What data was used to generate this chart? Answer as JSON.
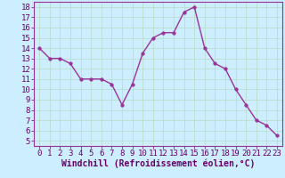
{
  "x": [
    0,
    1,
    2,
    3,
    4,
    5,
    6,
    7,
    8,
    9,
    10,
    11,
    12,
    13,
    14,
    15,
    16,
    17,
    18,
    19,
    20,
    21,
    22,
    23
  ],
  "y": [
    14,
    13,
    13,
    12.5,
    11,
    11,
    11,
    10.5,
    8.5,
    10.5,
    13.5,
    15,
    15.5,
    15.5,
    17.5,
    18,
    14,
    12.5,
    12,
    10,
    8.5,
    7,
    6.5,
    5.5
  ],
  "line_color": "#993399",
  "marker_color": "#993399",
  "bg_color": "#cceeff",
  "grid_color": "#bbddcc",
  "xlabel": "Windchill (Refroidissement éolien,°C)",
  "xlim": [
    -0.5,
    23.5
  ],
  "ylim": [
    4.5,
    18.5
  ],
  "xticks": [
    0,
    1,
    2,
    3,
    4,
    5,
    6,
    7,
    8,
    9,
    10,
    11,
    12,
    13,
    14,
    15,
    16,
    17,
    18,
    19,
    20,
    21,
    22,
    23
  ],
  "yticks": [
    5,
    6,
    7,
    8,
    9,
    10,
    11,
    12,
    13,
    14,
    15,
    16,
    17,
    18
  ],
  "xlabel_fontsize": 7,
  "tick_fontsize": 6.5,
  "line_width": 1.0,
  "marker_size": 2.5
}
